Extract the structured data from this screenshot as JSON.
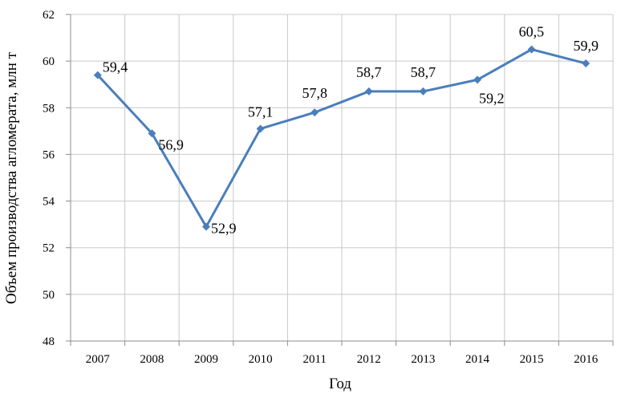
{
  "chart_data": {
    "type": "line",
    "title": "",
    "xlabel": "Год",
    "ylabel": "Объем производства агломерата, млн т",
    "categories": [
      "2007",
      "2008",
      "2009",
      "2010",
      "2011",
      "2012",
      "2013",
      "2014",
      "2015",
      "2016"
    ],
    "series": [
      {
        "values": [
          59.4,
          56.9,
          52.9,
          57.1,
          57.8,
          58.7,
          58.7,
          59.2,
          60.5,
          59.9
        ],
        "labels": [
          "59,4",
          "56,9",
          "52,9",
          "57,1",
          "57,8",
          "58,7",
          "58,7",
          "59,2",
          "60,5",
          "59,9"
        ],
        "color": "#4a7ebb",
        "marker": "diamond"
      }
    ],
    "ylim": [
      48,
      62
    ],
    "yticks": [
      "48",
      "50",
      "52",
      "54",
      "56",
      "58",
      "60",
      "62"
    ],
    "grid": true,
    "legend": "none"
  }
}
